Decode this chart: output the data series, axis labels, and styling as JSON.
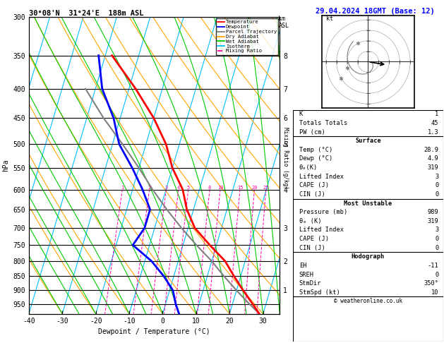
{
  "title_left": "30°08'N  31°24'E  188m ASL",
  "title_right": "29.04.2024 18GMT (Base: 12)",
  "xlabel": "Dewpoint / Temperature (°C)",
  "ylabel_left": "hPa",
  "pressure_levels": [
    300,
    350,
    400,
    450,
    500,
    550,
    600,
    650,
    700,
    750,
    800,
    850,
    900,
    950
  ],
  "temp_x": [
    28.9,
    26,
    22,
    18,
    14,
    8,
    2,
    -2,
    -5,
    -10,
    -14,
    -20,
    -28,
    -38
  ],
  "temp_p": [
    989,
    950,
    900,
    850,
    800,
    750,
    700,
    650,
    600,
    550,
    500,
    450,
    400,
    350
  ],
  "dewp_x": [
    4.9,
    3,
    1,
    -3,
    -8,
    -15,
    -13,
    -13,
    -17,
    -22,
    -28,
    -32,
    -38,
    -42
  ],
  "dewp_p": [
    989,
    950,
    900,
    850,
    800,
    750,
    700,
    650,
    600,
    550,
    500,
    450,
    400,
    350
  ],
  "parcel_x": [
    28.9,
    25,
    20,
    15,
    10,
    4,
    -2,
    -8,
    -14,
    -20,
    -27,
    -35,
    -43
  ],
  "parcel_p": [
    989,
    950,
    900,
    850,
    800,
    750,
    700,
    650,
    600,
    550,
    500,
    450,
    400
  ],
  "xmin": -40,
  "xmax": 35,
  "pmin": 300,
  "pmax": 989,
  "skew": 22,
  "isotherm_color": "#00bfff",
  "dry_adiabat_color": "#ffa500",
  "wet_adiabat_color": "#00cc00",
  "mixing_ratio_color": "#ff00aa",
  "mixing_ratio_vals": [
    1,
    2,
    3,
    4,
    5,
    8,
    10,
    15,
    20,
    25
  ],
  "km_ticks": [
    1,
    2,
    3,
    4,
    5,
    6,
    7,
    8
  ],
  "km_pressures": [
    900,
    800,
    700,
    600,
    500,
    450,
    400,
    350
  ],
  "legend_entries": [
    "Temperature",
    "Dewpoint",
    "Parcel Trajectory",
    "Dry Adiabat",
    "Wet Adiabat",
    "Isotherm",
    "Mixing Ratio"
  ],
  "legend_colors": [
    "#ff0000",
    "#0000ff",
    "#808080",
    "#ffa500",
    "#00cc00",
    "#00bfff",
    "#ff00aa"
  ],
  "bg_color": "#ffffff",
  "stats_K": 1,
  "stats_TT": 45,
  "stats_PW": 1.3,
  "surf_temp": 28.9,
  "surf_dewp": 4.9,
  "surf_theta": 319,
  "surf_li": 3,
  "surf_cape": 0,
  "surf_cin": 0,
  "mu_press": 989,
  "mu_theta": 319,
  "mu_li": 3,
  "mu_cape": 0,
  "mu_cin": 0,
  "hodo_eh": -11,
  "hodo_sreh": 0,
  "hodo_stmdir": "350°",
  "hodo_stmspd": 10,
  "copyright": "© weatheronline.co.uk",
  "wind_barb_colors": [
    "#00cc00",
    "#00cc00",
    "#00cc00",
    "#00cc00",
    "#00cc00",
    "#00cc00",
    "#00cc00",
    "#00ffff",
    "#00ffff",
    "#00ffff",
    "#00ffff",
    "#00ffff",
    "#00cc00",
    "#00cc00",
    "#00cc00"
  ],
  "wind_barb_pressures": [
    989,
    950,
    900,
    850,
    800,
    750,
    700,
    650,
    600,
    550,
    500,
    450,
    400,
    350,
    300
  ]
}
